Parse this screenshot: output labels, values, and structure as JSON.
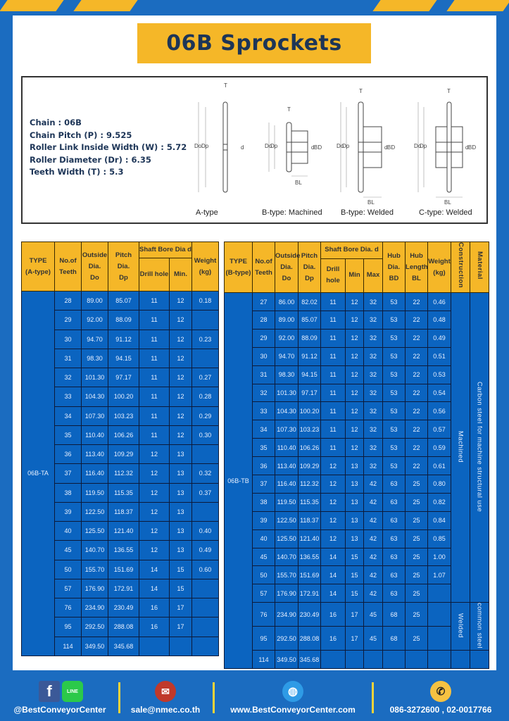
{
  "title": "06B Sprockets",
  "specs": [
    "Chain  : 06B",
    "Chain Pitch (P)  :  9.525",
    "Roller Link Inside Width (W)  :  5.72",
    "Roller Diameter (Dr)  : 6.35",
    "Teeth Width (T)  :  5.3"
  ],
  "diagram": {
    "captions": [
      "A-type",
      "B-type: Machined",
      "B-type: Welded",
      "C-type: Welded"
    ],
    "labels": {
      "T": "T",
      "Do": "Do",
      "Dp": "Dp",
      "d": "d",
      "BD": "BD",
      "BL": "BL"
    }
  },
  "colors": {
    "brand_blue": "#1b6cc0",
    "accent_yellow": "#f5b728",
    "cell_blue": "#0b64c0",
    "title_text": "#1d3557"
  },
  "table_a": {
    "headers": {
      "type": "TYPE",
      "type_sub": "(A-type)",
      "teeth": "No.of",
      "teeth_sub": "Teeth",
      "do": "Outside",
      "do_sub": "Dia.",
      "do_sub2": "Do",
      "dp": "Pitch Dia.",
      "dp_sub": "Dp",
      "bore": "Shaft Bore Dia d",
      "drill": "Drill hole",
      "min": "Min.",
      "weight": "Weight",
      "weight_sub": "(kg)"
    },
    "type_label": "06B-TA",
    "rows": [
      [
        "28",
        "89.00",
        "85.07",
        "11",
        "12",
        "0.18"
      ],
      [
        "29",
        "92.00",
        "88.09",
        "11",
        "12",
        ""
      ],
      [
        "30",
        "94.70",
        "91.12",
        "11",
        "12",
        "0.23"
      ],
      [
        "31",
        "98.30",
        "94.15",
        "11",
        "12",
        ""
      ],
      [
        "32",
        "101.30",
        "97.17",
        "11",
        "12",
        "0.27"
      ],
      [
        "33",
        "104.30",
        "100.20",
        "11",
        "12",
        "0.28"
      ],
      [
        "34",
        "107.30",
        "103.23",
        "11",
        "12",
        "0.29"
      ],
      [
        "35",
        "110.40",
        "106.26",
        "11",
        "12",
        "0.30"
      ],
      [
        "36",
        "113.40",
        "109.29",
        "12",
        "13",
        ""
      ],
      [
        "37",
        "116.40",
        "112.32",
        "12",
        "13",
        "0.32"
      ],
      [
        "38",
        "119.50",
        "115.35",
        "12",
        "13",
        "0.37"
      ],
      [
        "39",
        "122.50",
        "118.37",
        "12",
        "13",
        ""
      ],
      [
        "40",
        "125.50",
        "121.40",
        "12",
        "13",
        "0.40"
      ],
      [
        "45",
        "140.70",
        "136.55",
        "12",
        "13",
        "0.49"
      ],
      [
        "50",
        "155.70",
        "151.69",
        "14",
        "15",
        "0.60"
      ],
      [
        "57",
        "176.90",
        "172.91",
        "14",
        "15",
        ""
      ],
      [
        "76",
        "234.90",
        "230.49",
        "16",
        "17",
        ""
      ],
      [
        "95",
        "292.50",
        "288.08",
        "16",
        "17",
        ""
      ],
      [
        "114",
        "349.50",
        "345.68",
        "",
        "",
        ""
      ]
    ]
  },
  "table_b": {
    "headers": {
      "type": "TYPE",
      "type_sub": "(B-type)",
      "teeth": "No.of",
      "teeth_sub": "Teeth",
      "do": "Outside",
      "do_sub": "Dia.",
      "do_sub2": "Do",
      "dp": "Pitch",
      "dp_sub": "Dia.",
      "dp_sub2": "Dp",
      "bore": "Shaft Bore Dia. d",
      "drill": "Drill hole",
      "min": "Min",
      "max": "Max",
      "bd": "Hub",
      "bd_sub": "Dia.",
      "bd_sub2": "BD",
      "bl": "Hub",
      "bl_sub": "Length",
      "bl_sub2": "BL",
      "weight": "Weight",
      "weight_sub": "(kg)",
      "construction": "Construction",
      "material": "Material"
    },
    "type_label": "06B-TB",
    "groups": [
      {
        "construction": "Machined",
        "material": "Carbon steel for machine structural use",
        "count": 17
      },
      {
        "construction": "Welded",
        "material": "common steel",
        "count": 2
      }
    ],
    "rows": [
      [
        "27",
        "86.00",
        "82.02",
        "11",
        "12",
        "32",
        "53",
        "22",
        "0.46"
      ],
      [
        "28",
        "89.00",
        "85.07",
        "11",
        "12",
        "32",
        "53",
        "22",
        "0.48"
      ],
      [
        "29",
        "92.00",
        "88.09",
        "11",
        "12",
        "32",
        "53",
        "22",
        "0.49"
      ],
      [
        "30",
        "94.70",
        "91.12",
        "11",
        "12",
        "32",
        "53",
        "22",
        "0.51"
      ],
      [
        "31",
        "98.30",
        "94.15",
        "11",
        "12",
        "32",
        "53",
        "22",
        "0.53"
      ],
      [
        "32",
        "101.30",
        "97.17",
        "11",
        "12",
        "32",
        "53",
        "22",
        "0.54"
      ],
      [
        "33",
        "104.30",
        "100.20",
        "11",
        "12",
        "32",
        "53",
        "22",
        "0.56"
      ],
      [
        "34",
        "107.30",
        "103.23",
        "11",
        "12",
        "32",
        "53",
        "22",
        "0.57"
      ],
      [
        "35",
        "110.40",
        "106.26",
        "11",
        "12",
        "32",
        "53",
        "22",
        "0.59"
      ],
      [
        "36",
        "113.40",
        "109.29",
        "12",
        "13",
        "32",
        "53",
        "22",
        "0.61"
      ],
      [
        "37",
        "116.40",
        "112.32",
        "12",
        "13",
        "42",
        "63",
        "25",
        "0.80"
      ],
      [
        "38",
        "119.50",
        "115.35",
        "12",
        "13",
        "42",
        "63",
        "25",
        "0.82"
      ],
      [
        "39",
        "122.50",
        "118.37",
        "12",
        "13",
        "42",
        "63",
        "25",
        "0.84"
      ],
      [
        "40",
        "125.50",
        "121.40",
        "12",
        "13",
        "42",
        "63",
        "25",
        "0.85"
      ],
      [
        "45",
        "140.70",
        "136.55",
        "14",
        "15",
        "42",
        "63",
        "25",
        "1.00"
      ],
      [
        "50",
        "155.70",
        "151.69",
        "14",
        "15",
        "42",
        "63",
        "25",
        "1.07"
      ],
      [
        "57",
        "176.90",
        "172.91",
        "14",
        "15",
        "42",
        "63",
        "25",
        ""
      ],
      [
        "76",
        "234.90",
        "230.49",
        "16",
        "17",
        "45",
        "68",
        "25",
        ""
      ],
      [
        "95",
        "292.50",
        "288.08",
        "16",
        "17",
        "45",
        "68",
        "25",
        ""
      ],
      [
        "114",
        "349.50",
        "345.68",
        "",
        "",
        "",
        "",
        "",
        ""
      ]
    ]
  },
  "footer": {
    "social": "@BestConveyorCenter",
    "social_icons": {
      "facebook": "f",
      "line": "LINE"
    },
    "email": "sale@nmec.co.th",
    "website": "www.BestConveyorCenter.com",
    "phone": "086-3272600 , 02-0017766"
  }
}
